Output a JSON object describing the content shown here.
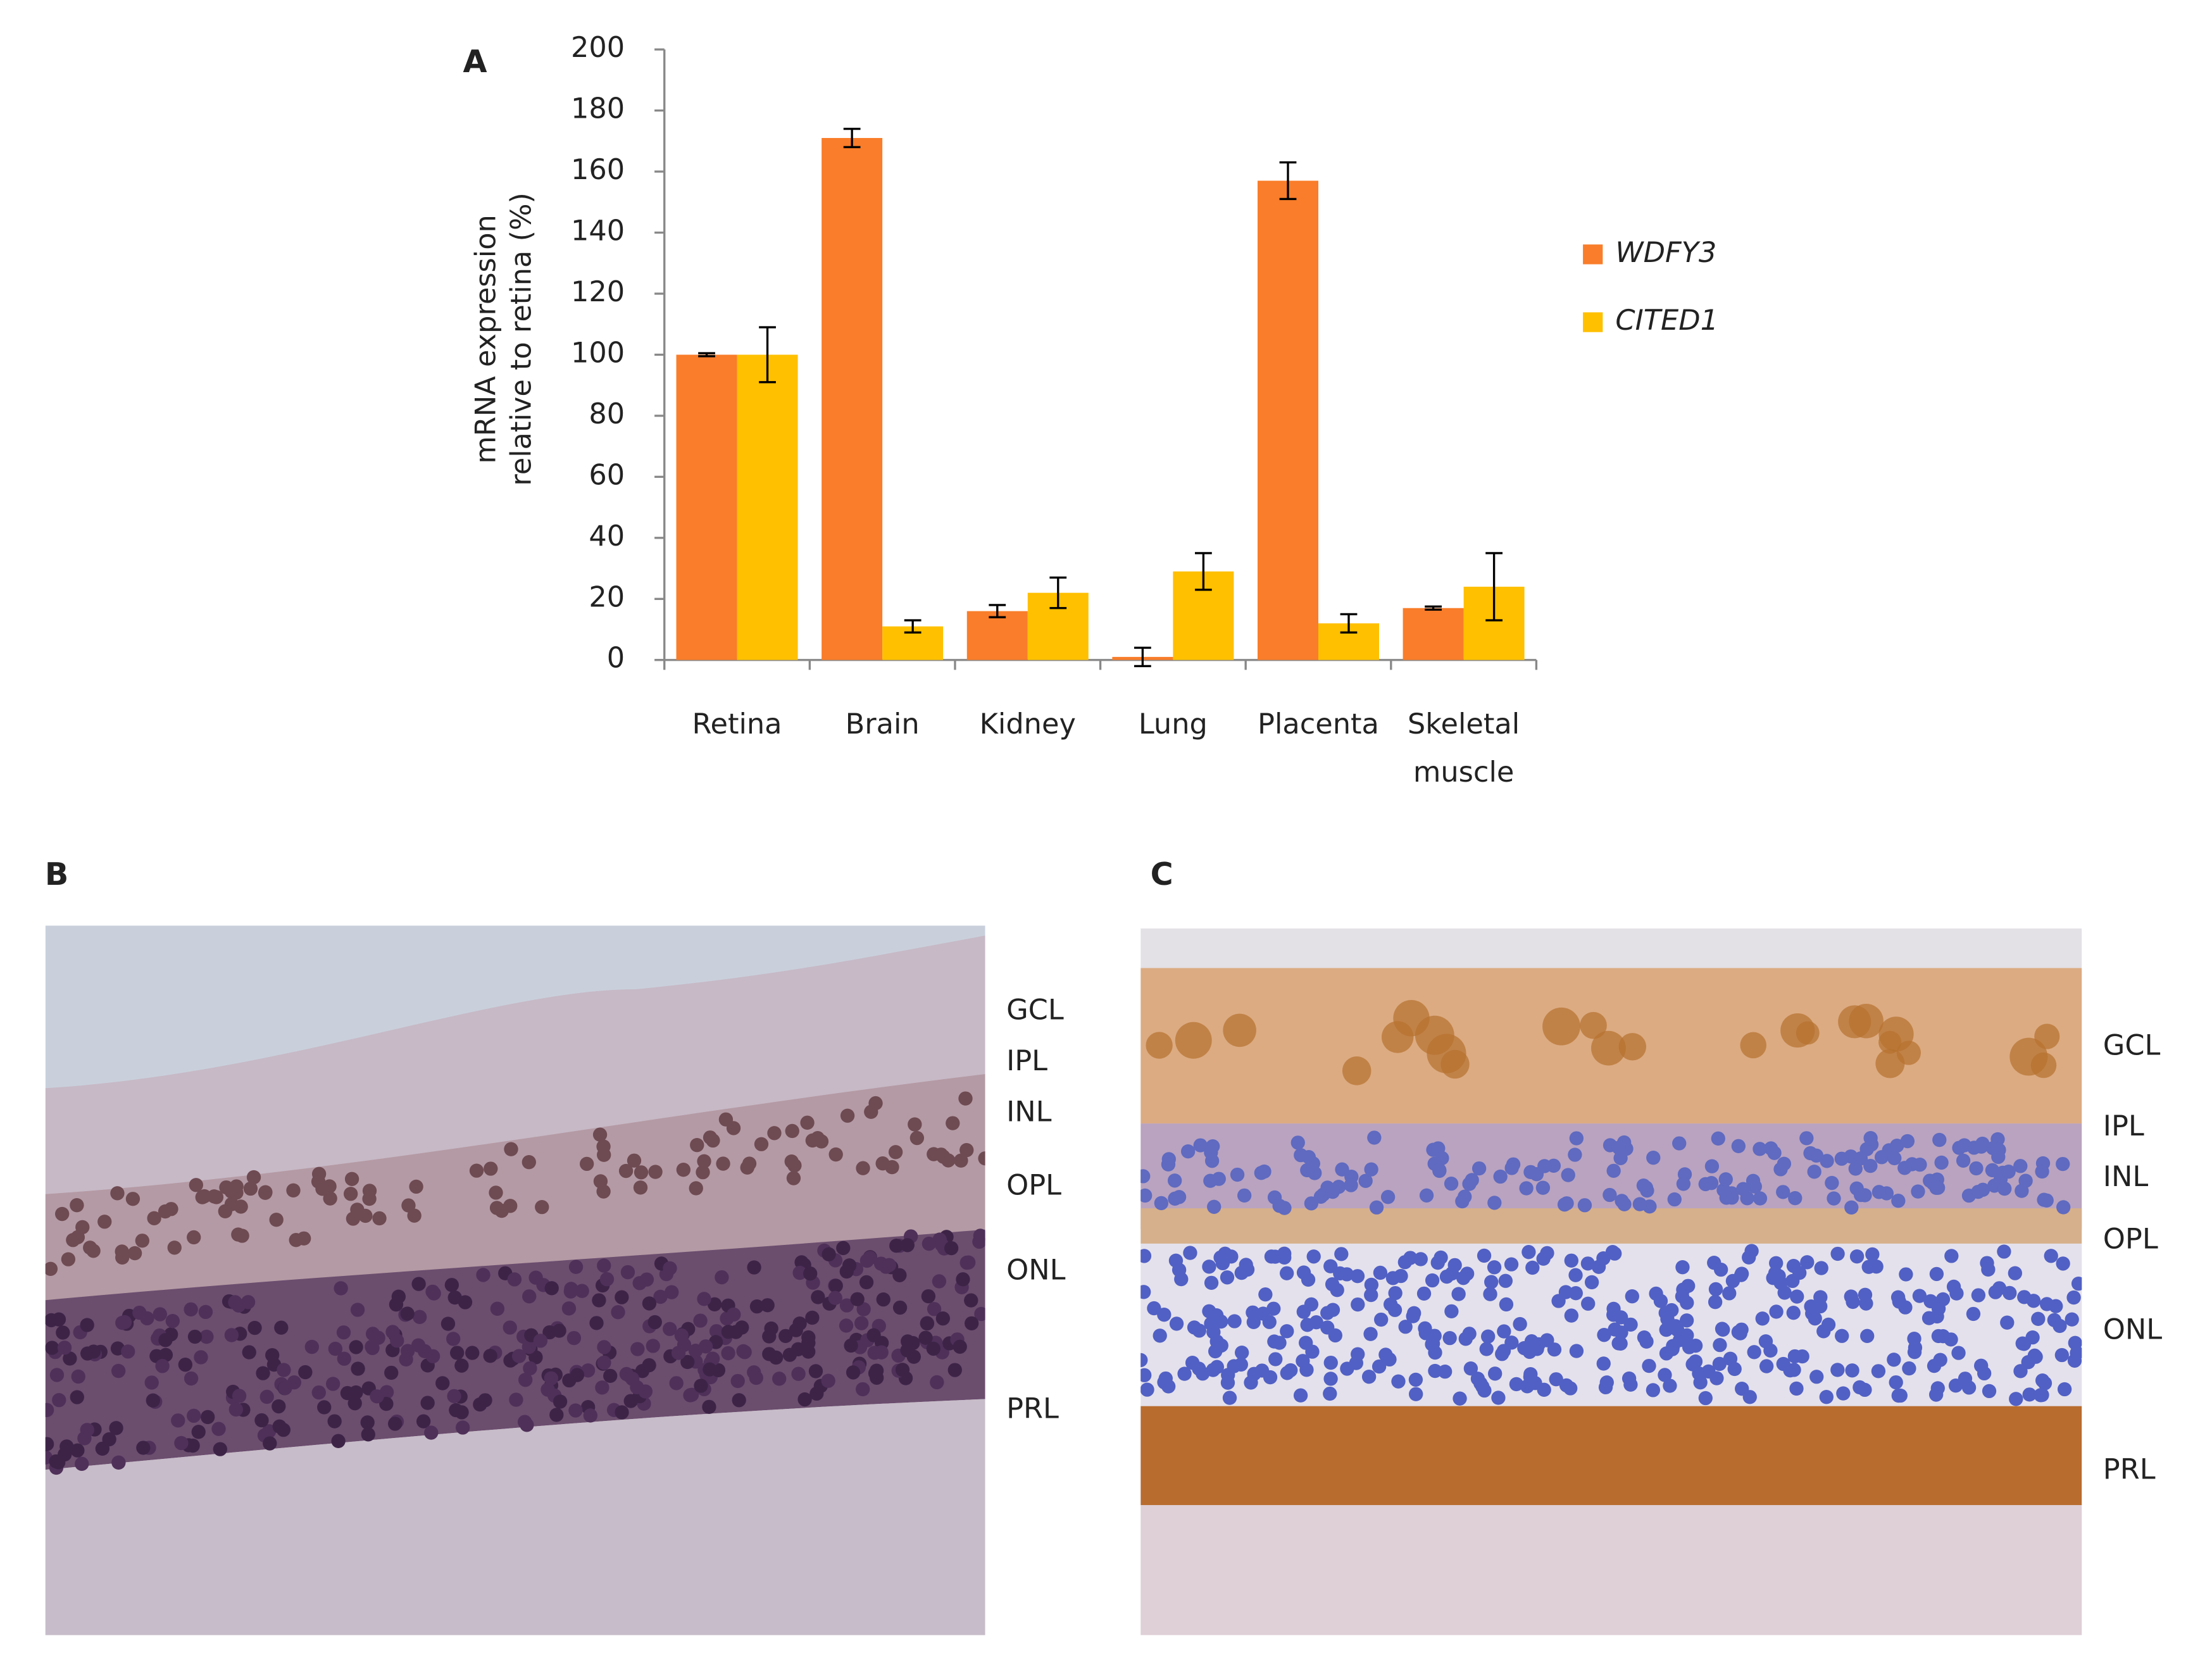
{
  "chart_data": {
    "type": "bar",
    "panel_label": "A",
    "ylabel": [
      "mRNA expression",
      "relative to retina (%)"
    ],
    "categories": [
      "Retina",
      "Brain",
      "Kidney",
      "Lung",
      "Placenta",
      "Skeletal muscle"
    ],
    "series": [
      {
        "name": "WDFY3",
        "color": "#f97d2a",
        "values": [
          100,
          171,
          16,
          1,
          157,
          17
        ],
        "errors": [
          0.5,
          3,
          2,
          3,
          6,
          0.5
        ]
      },
      {
        "name": "CITED1",
        "color": "#ffc000",
        "values": [
          100,
          11,
          22,
          29,
          12,
          24
        ],
        "errors": [
          9,
          2,
          5,
          6,
          3,
          11
        ]
      }
    ],
    "ylim": [
      0,
      200
    ],
    "yticks": [
      0,
      20,
      40,
      60,
      80,
      100,
      120,
      140,
      160,
      180,
      200
    ],
    "grid": false,
    "legend": "right"
  },
  "panels": [
    {
      "label": "B",
      "layers": [
        "GCL",
        "IPL",
        "INL",
        "OPL",
        "ONL",
        "PRL"
      ]
    },
    {
      "label": "C",
      "layers": [
        "GCL",
        "IPL",
        "INL",
        "OPL",
        "ONL",
        "PRL"
      ]
    }
  ]
}
